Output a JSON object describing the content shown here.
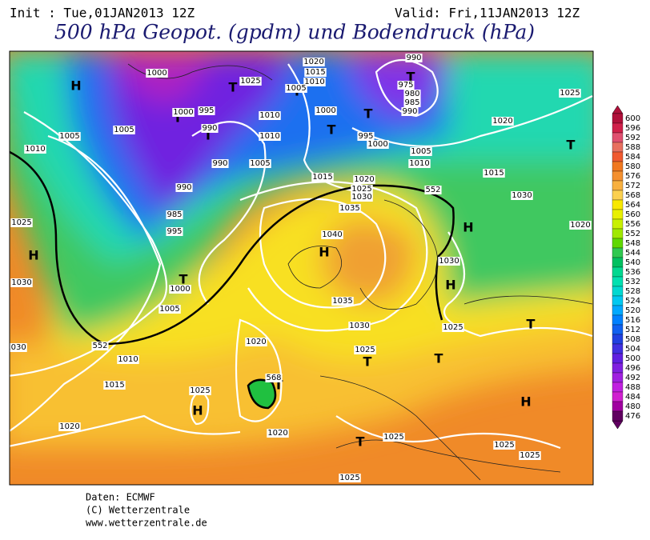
{
  "header": {
    "init": "Init : Tue,01JAN2013 12Z",
    "valid": "Valid: Fri,11JAN2013 12Z",
    "title": "500 hPa Geopot. (gpdm) und Bodendruck (hPa)"
  },
  "map": {
    "highs": [
      "H",
      "H",
      "H",
      "H",
      "H",
      "H",
      "H"
    ],
    "lows": [
      "T",
      "T",
      "T",
      "T",
      "T",
      "T",
      "T",
      "T",
      "T",
      "T",
      "T",
      "T",
      "T",
      "T"
    ],
    "isobar_labels": [
      1000,
      1000,
      1005,
      1005,
      1010,
      995,
      990,
      990,
      990,
      985,
      995,
      1000,
      1005,
      1010,
      1015,
      1020,
      1025,
      1020,
      1020,
      1025,
      1030,
      1035,
      1040,
      1035,
      1030,
      1025,
      1020,
      1015,
      1020,
      1015,
      1010,
      1005,
      1000,
      1010,
      1010,
      1005,
      990,
      975,
      980,
      985,
      990,
      995,
      1000,
      1005,
      1010,
      1015,
      1020,
      1025,
      1030,
      1020,
      1030,
      1025,
      1025,
      1030,
      1030,
      1025,
      1025,
      1025,
      1025,
      1025
    ],
    "contour_labels": [
      552,
      568,
      552
    ]
  },
  "colorbar": {
    "values": [
      600,
      596,
      592,
      588,
      584,
      580,
      576,
      572,
      568,
      564,
      560,
      556,
      552,
      548,
      544,
      540,
      536,
      532,
      528,
      524,
      520,
      516,
      512,
      508,
      504,
      500,
      496,
      492,
      488,
      484,
      480,
      476
    ],
    "colors": [
      "#b0103a",
      "#d0204a",
      "#e05070",
      "#e87060",
      "#f05a30",
      "#f07820",
      "#f49030",
      "#f8b040",
      "#fbd050",
      "#f8e800",
      "#e8f000",
      "#c8f000",
      "#a0e800",
      "#60d800",
      "#30c850",
      "#00c060",
      "#00d890",
      "#00e0b0",
      "#00d8d0",
      "#00c8f0",
      "#00a8ff",
      "#0080ff",
      "#1060f0",
      "#2040e0",
      "#4030e0",
      "#6020e0",
      "#8020e0",
      "#a020e0",
      "#c020e0",
      "#d020d0",
      "#a000a0",
      "#600060"
    ]
  },
  "footer": {
    "lines": [
      "Daten: ECMWF",
      "(C) Wetterzentrale",
      "www.wetterzentrale.de"
    ]
  }
}
